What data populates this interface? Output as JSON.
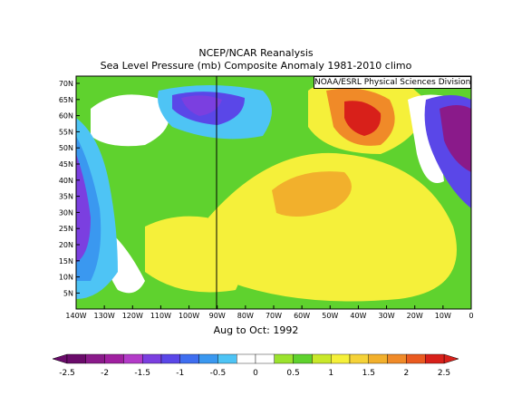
{
  "title": "NCEP/NCAR Reanalysis",
  "subtitle": "Sea Level Pressure (mb) Composite Anomaly 1981-2010 climo",
  "credit": "NOAA/ESRL Physical Sciences Division",
  "period": "Aug to Oct: 1992",
  "lat_labels": [
    "70N",
    "65N",
    "60N",
    "55N",
    "50N",
    "45N",
    "40N",
    "35N",
    "30N",
    "25N",
    "20N",
    "15N",
    "10N",
    "5N"
  ],
  "lon_labels": [
    "140W",
    "130W",
    "120W",
    "110W",
    "100W",
    "90W",
    "80W",
    "70W",
    "60W",
    "50W",
    "40W",
    "30W",
    "20W",
    "10W",
    "0"
  ],
  "colorbar": {
    "labels": [
      "-2.5",
      "-2",
      "-1.5",
      "-1",
      "-0.5",
      "0",
      "0.5",
      "1",
      "1.5",
      "2",
      "2.5"
    ],
    "colors": [
      "#6a0b6a",
      "#8a1a8a",
      "#a020a0",
      "#b33bc8",
      "#7b3fe0",
      "#5a47e8",
      "#3f6ef0",
      "#3a98f0",
      "#4ec4f5",
      "#ffffff",
      "#ffffff",
      "#9be32e",
      "#5fd22e",
      "#c9e82a",
      "#f5f03a",
      "#f5d238",
      "#f2b02c",
      "#f08a28",
      "#ea5a20",
      "#d8201a"
    ],
    "low_color": "#6a0b6a",
    "high_color": "#d8201a"
  }
}
